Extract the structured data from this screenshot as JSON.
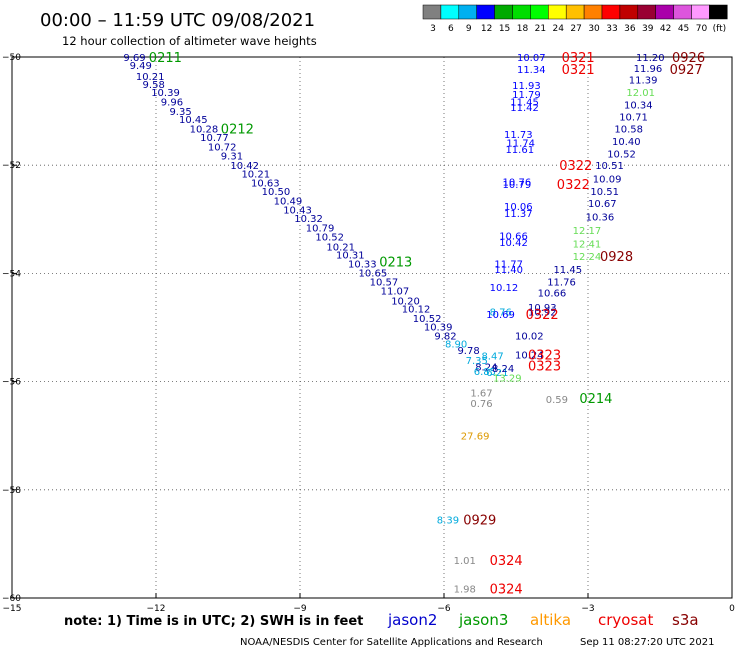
{
  "header": {
    "title": "00:00 – 11:59 UTC 09/08/2021",
    "subtitle": "12 hour collection of altimeter wave heights"
  },
  "colorbar": {
    "colors": [
      "#808080",
      "#00ffff",
      "#00b0f0",
      "#0000ff",
      "#00aa00",
      "#00dd00",
      "#00ff00",
      "#ffff00",
      "#ffc000",
      "#ff8000",
      "#ff0000",
      "#c00000",
      "#990033",
      "#aa00aa",
      "#dd55dd",
      "#ff99ff",
      "#000000"
    ],
    "labels": [
      "3",
      "6",
      "9",
      "12",
      "15",
      "18",
      "21",
      "24",
      "27",
      "30",
      "33",
      "36",
      "39",
      "42",
      "45",
      "70",
      "(ft)"
    ]
  },
  "footer": {
    "note": "note: 1) Time is in UTC; 2) SWH is in feet",
    "credit": "NOAA/NESDIS Center for Satellite Applications and Research",
    "timestamp": "Sep 11 08:27:20 UTC 2021"
  },
  "legend": [
    {
      "name": "jason2",
      "color": "#0000cc"
    },
    {
      "name": "jason3",
      "color": "#009900"
    },
    {
      "name": "altika",
      "color": "#ff9900"
    },
    {
      "name": "cryosat",
      "color": "#ee0000"
    },
    {
      "name": "s3a",
      "color": "#880000"
    }
  ],
  "chart_data": {
    "type": "scatter",
    "xlim": [
      -15,
      0
    ],
    "ylim": [
      -60,
      -50
    ],
    "xticks": [
      -15,
      -12,
      -9,
      -6,
      -3,
      0
    ],
    "yticks": [
      -50,
      -52,
      -54,
      -56,
      -58,
      -60
    ],
    "grid": true,
    "colors": {
      "navy": "#000099",
      "blue": "#0000ff",
      "cyan": "#00aadd",
      "lgreen": "#66dd55",
      "green": "#009900",
      "gray": "#888888",
      "orange": "#dd9900",
      "red": "#ee0000",
      "maroon": "#880000"
    },
    "points": [
      {
        "x": -12.68,
        "y": -50.0,
        "label": "9.69",
        "c": "navy"
      },
      {
        "x": -12.55,
        "y": -50.15,
        "label": "9.49",
        "c": "navy"
      },
      {
        "x": -12.42,
        "y": -50.35,
        "label": "10.21",
        "c": "navy"
      },
      {
        "x": -12.28,
        "y": -50.5,
        "label": "9.58",
        "c": "navy"
      },
      {
        "x": -12.1,
        "y": -50.65,
        "label": "10.39",
        "c": "navy"
      },
      {
        "x": -11.9,
        "y": -50.82,
        "label": "9.96",
        "c": "navy"
      },
      {
        "x": -11.72,
        "y": -51.0,
        "label": "9.35",
        "c": "navy"
      },
      {
        "x": -11.52,
        "y": -51.15,
        "label": "10.45",
        "c": "navy"
      },
      {
        "x": -11.3,
        "y": -51.32,
        "label": "10.28",
        "c": "navy"
      },
      {
        "x": -11.08,
        "y": -51.48,
        "label": "10.77",
        "c": "navy"
      },
      {
        "x": -10.92,
        "y": -51.65,
        "label": "10.72",
        "c": "navy"
      },
      {
        "x": -10.65,
        "y": -51.82,
        "label": "9.31",
        "c": "navy"
      },
      {
        "x": -10.45,
        "y": -52.0,
        "label": "10.42",
        "c": "navy"
      },
      {
        "x": -10.22,
        "y": -52.15,
        "label": "10.21",
        "c": "navy"
      },
      {
        "x": -10.02,
        "y": -52.32,
        "label": "10.63",
        "c": "navy"
      },
      {
        "x": -9.8,
        "y": -52.48,
        "label": "10.50",
        "c": "navy"
      },
      {
        "x": -9.55,
        "y": -52.65,
        "label": "10.49",
        "c": "navy"
      },
      {
        "x": -9.35,
        "y": -52.82,
        "label": "10.43",
        "c": "navy"
      },
      {
        "x": -9.12,
        "y": -52.98,
        "label": "10.32",
        "c": "navy"
      },
      {
        "x": -8.88,
        "y": -53.15,
        "label": "10.79",
        "c": "navy"
      },
      {
        "x": -8.68,
        "y": -53.32,
        "label": "10.52",
        "c": "navy"
      },
      {
        "x": -8.45,
        "y": -53.5,
        "label": "10.21",
        "c": "navy"
      },
      {
        "x": -8.25,
        "y": -53.65,
        "label": "10.31",
        "c": "navy"
      },
      {
        "x": -8.0,
        "y": -53.82,
        "label": "10.33",
        "c": "navy"
      },
      {
        "x": -7.78,
        "y": -53.98,
        "label": "10.65",
        "c": "navy"
      },
      {
        "x": -7.55,
        "y": -54.15,
        "label": "10.57",
        "c": "navy"
      },
      {
        "x": -7.32,
        "y": -54.32,
        "label": "11.07",
        "c": "navy"
      },
      {
        "x": -7.1,
        "y": -54.5,
        "label": "10.20",
        "c": "navy"
      },
      {
        "x": -6.88,
        "y": -54.65,
        "label": "10.12",
        "c": "navy"
      },
      {
        "x": -6.65,
        "y": -54.82,
        "label": "10.52",
        "c": "navy"
      },
      {
        "x": -6.42,
        "y": -54.98,
        "label": "10.39",
        "c": "navy"
      },
      {
        "x": -6.2,
        "y": -55.15,
        "label": "9.82",
        "c": "navy"
      },
      {
        "x": -5.98,
        "y": -55.3,
        "label": "8.90",
        "c": "cyan"
      },
      {
        "x": -5.72,
        "y": -55.42,
        "label": "9.78",
        "c": "navy"
      },
      {
        "x": -5.55,
        "y": -55.6,
        "label": "7.35",
        "c": "cyan"
      },
      {
        "x": -5.22,
        "y": -55.52,
        "label": "8.47",
        "c": "cyan"
      },
      {
        "x": -5.35,
        "y": -55.72,
        "label": "8.24",
        "c": "navy"
      },
      {
        "x": -5.38,
        "y": -55.8,
        "label": "6.85",
        "c": "cyan"
      },
      {
        "x": -5.12,
        "y": -55.82,
        "label": "6.21",
        "c": "cyan"
      },
      {
        "x": -4.98,
        "y": -55.92,
        "label": "13.29",
        "c": "lgreen"
      },
      {
        "x": -5.0,
        "y": -55.75,
        "label": "8.24",
        "c": "navy"
      },
      {
        "x": -4.52,
        "y": -55.5,
        "label": "10.24",
        "c": "navy"
      },
      {
        "x": -4.52,
        "y": -55.15,
        "label": "10.02",
        "c": "navy"
      },
      {
        "x": -5.05,
        "y": -54.7,
        "label": "8.76",
        "c": "cyan"
      },
      {
        "x": -5.12,
        "y": -54.75,
        "label": "10.69",
        "c": "blue"
      },
      {
        "x": -4.25,
        "y": -54.7,
        "label": "10.92",
        "c": "navy"
      },
      {
        "x": -4.25,
        "y": -54.62,
        "label": "10.93",
        "c": "navy"
      },
      {
        "x": -4.05,
        "y": -54.35,
        "label": "10.66",
        "c": "navy"
      },
      {
        "x": -3.85,
        "y": -54.15,
        "label": "11.76",
        "c": "navy"
      },
      {
        "x": -5.05,
        "y": -54.25,
        "label": "10.12",
        "c": "blue"
      },
      {
        "x": -4.95,
        "y": -53.82,
        "label": "11.77",
        "c": "blue"
      },
      {
        "x": -4.95,
        "y": -53.92,
        "label": "11.40",
        "c": "blue"
      },
      {
        "x": -3.72,
        "y": -53.92,
        "label": "11.45",
        "c": "navy"
      },
      {
        "x": -3.32,
        "y": -53.68,
        "label": "12.24",
        "c": "lgreen"
      },
      {
        "x": -3.32,
        "y": -53.45,
        "label": "12.41",
        "c": "lgreen"
      },
      {
        "x": -3.32,
        "y": -53.2,
        "label": "12.17",
        "c": "lgreen"
      },
      {
        "x": -4.85,
        "y": -53.3,
        "label": "10.66",
        "c": "blue"
      },
      {
        "x": -4.85,
        "y": -53.42,
        "label": "10.42",
        "c": "blue"
      },
      {
        "x": -4.75,
        "y": -52.75,
        "label": "10.06",
        "c": "blue"
      },
      {
        "x": -4.75,
        "y": -52.88,
        "label": "11.37",
        "c": "blue"
      },
      {
        "x": -4.78,
        "y": -52.3,
        "label": "10.76",
        "c": "blue"
      },
      {
        "x": -4.78,
        "y": -52.35,
        "label": "10.79",
        "c": "blue"
      },
      {
        "x": -3.05,
        "y": -52.95,
        "label": "10.36",
        "c": "navy"
      },
      {
        "x": -3.0,
        "y": -52.7,
        "label": "10.67",
        "c": "navy"
      },
      {
        "x": -2.95,
        "y": -52.48,
        "label": "10.51",
        "c": "navy"
      },
      {
        "x": -2.9,
        "y": -52.25,
        "label": "10.09",
        "c": "navy"
      },
      {
        "x": -2.85,
        "y": -52.0,
        "label": "10.51",
        "c": "navy"
      },
      {
        "x": -2.6,
        "y": -51.78,
        "label": "10.52",
        "c": "navy"
      },
      {
        "x": -2.5,
        "y": -51.55,
        "label": "10.40",
        "c": "navy"
      },
      {
        "x": -2.45,
        "y": -51.32,
        "label": "10.58",
        "c": "navy"
      },
      {
        "x": -2.35,
        "y": -51.1,
        "label": "10.71",
        "c": "navy"
      },
      {
        "x": -2.25,
        "y": -50.88,
        "label": "10.34",
        "c": "navy"
      },
      {
        "x": -2.2,
        "y": -50.65,
        "label": "12.01",
        "c": "lgreen"
      },
      {
        "x": -2.15,
        "y": -50.42,
        "label": "11.39",
        "c": "navy"
      },
      {
        "x": -2.05,
        "y": -50.2,
        "label": "11.96",
        "c": "navy"
      },
      {
        "x": -2.0,
        "y": -50.0,
        "label": "11.20",
        "c": "navy"
      },
      {
        "x": -4.75,
        "y": -51.42,
        "label": "11.73",
        "c": "blue"
      },
      {
        "x": -4.7,
        "y": -51.58,
        "label": "11.74",
        "c": "blue"
      },
      {
        "x": -4.72,
        "y": -51.7,
        "label": "11.61",
        "c": "blue"
      },
      {
        "x": -4.58,
        "y": -50.52,
        "label": "11.93",
        "c": "blue"
      },
      {
        "x": -4.58,
        "y": -50.68,
        "label": "11.79",
        "c": "blue"
      },
      {
        "x": -4.62,
        "y": -50.82,
        "label": "11.45",
        "c": "blue"
      },
      {
        "x": -4.62,
        "y": -50.92,
        "label": "11.42",
        "c": "blue"
      },
      {
        "x": -4.48,
        "y": -50.0,
        "label": "10.07",
        "c": "blue"
      },
      {
        "x": -4.48,
        "y": -50.22,
        "label": "11.34",
        "c": "blue"
      },
      {
        "x": -5.45,
        "y": -56.2,
        "label": "1.67",
        "c": "gray"
      },
      {
        "x": -5.45,
        "y": -56.4,
        "label": "0.76",
        "c": "gray"
      },
      {
        "x": -3.88,
        "y": -56.32,
        "label": "0.59",
        "c": "gray"
      },
      {
        "x": -5.65,
        "y": -57.0,
        "label": "27.69",
        "c": "orange"
      },
      {
        "x": -6.15,
        "y": -58.55,
        "label": "8.39",
        "c": "cyan"
      },
      {
        "x": -5.8,
        "y": -59.3,
        "label": "1.01",
        "c": "gray"
      },
      {
        "x": -5.8,
        "y": -59.82,
        "label": "1.98",
        "c": "gray"
      }
    ],
    "annotations": [
      {
        "x": -12.15,
        "y": -50.0,
        "text": "0211",
        "c": "green"
      },
      {
        "x": -10.65,
        "y": -51.32,
        "text": "0212",
        "c": "green"
      },
      {
        "x": -7.35,
        "y": -53.78,
        "text": "0213",
        "c": "green"
      },
      {
        "x": -3.18,
        "y": -56.3,
        "text": "0214",
        "c": "green"
      },
      {
        "x": -3.55,
        "y": -50.0,
        "text": "0321",
        "c": "red"
      },
      {
        "x": -3.55,
        "y": -50.22,
        "text": "0321",
        "c": "red"
      },
      {
        "x": -3.6,
        "y": -52.0,
        "text": "0322",
        "c": "red"
      },
      {
        "x": -3.65,
        "y": -52.35,
        "text": "0322",
        "c": "red"
      },
      {
        "x": -4.3,
        "y": -54.75,
        "text": "0322",
        "c": "red"
      },
      {
        "x": -4.25,
        "y": -55.5,
        "text": "0323",
        "c": "red"
      },
      {
        "x": -4.25,
        "y": -55.7,
        "text": "0323",
        "c": "red"
      },
      {
        "x": -1.25,
        "y": -50.0,
        "text": "0926",
        "c": "maroon"
      },
      {
        "x": -1.3,
        "y": -50.22,
        "text": "0927",
        "c": "maroon"
      },
      {
        "x": -2.75,
        "y": -53.68,
        "text": "0928",
        "c": "maroon"
      },
      {
        "x": -5.6,
        "y": -58.55,
        "text": "0929",
        "c": "maroon"
      },
      {
        "x": -5.05,
        "y": -59.3,
        "text": "0324",
        "c": "red"
      },
      {
        "x": -5.05,
        "y": -59.82,
        "text": "0324",
        "c": "red"
      }
    ]
  }
}
